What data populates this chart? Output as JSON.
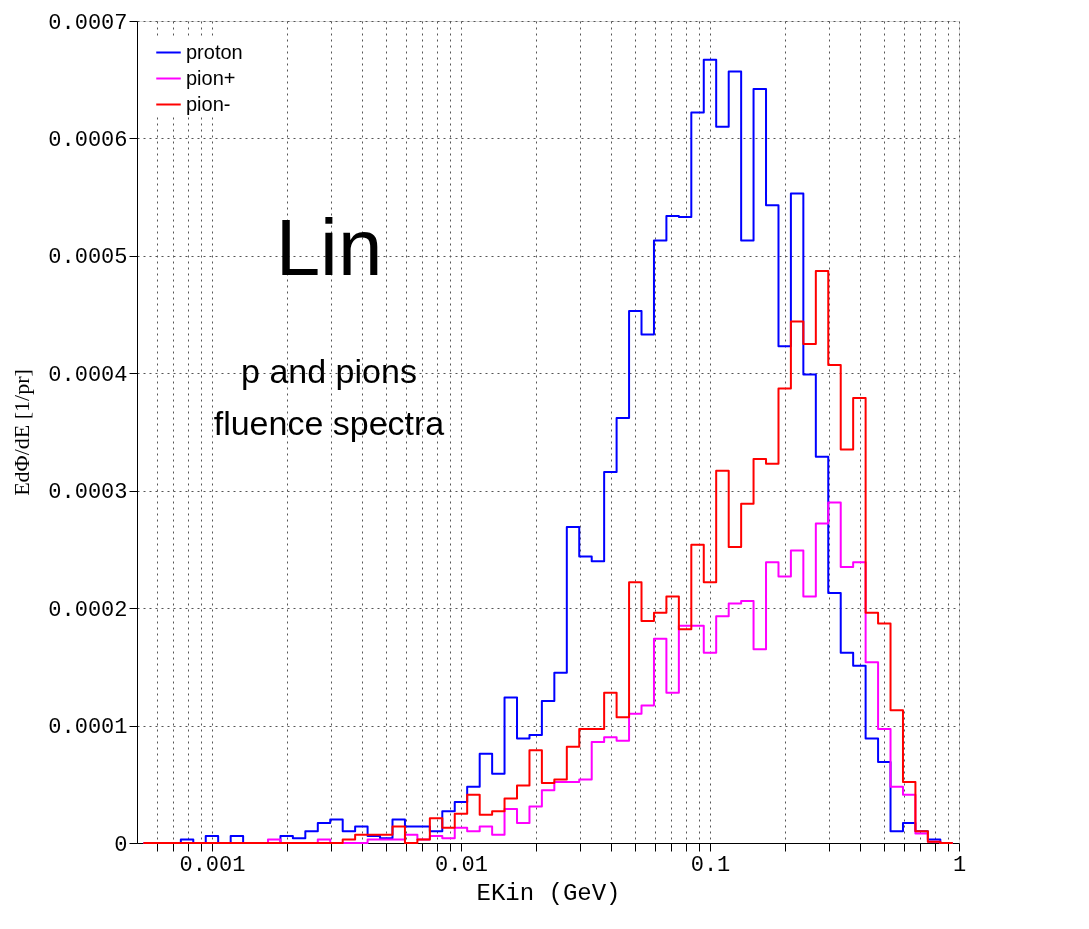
{
  "chart_data": {
    "type": "histogram",
    "xlabel": "EKin (GeV)",
    "ylabel": "EdΦ/dE [1/pr]",
    "annotations": [
      "Lin",
      "p and pions",
      "fluence spectra"
    ],
    "log": "x",
    "grid": true,
    "legend": "top left",
    "line_style": "solid",
    "xlim": [
      0.0005,
      1
    ],
    "ylim": [
      0,
      0.0007
    ],
    "xticks": [
      {
        "value": 0.0006,
        "label": null
      },
      {
        "value": 0.0007,
        "label": null
      },
      {
        "value": 0.0008,
        "label": null
      },
      {
        "value": 0.0009,
        "label": null
      },
      0.001,
      {
        "value": 0.002,
        "label": null
      },
      {
        "value": 0.003,
        "label": null
      },
      {
        "value": 0.004,
        "label": null
      },
      {
        "value": 0.005,
        "label": null
      },
      {
        "value": 0.006,
        "label": null
      },
      {
        "value": 0.007,
        "label": null
      },
      {
        "value": 0.008,
        "label": null
      },
      {
        "value": 0.009,
        "label": null
      },
      0.01,
      {
        "value": 0.02,
        "label": null
      },
      {
        "value": 0.03,
        "label": null
      },
      {
        "value": 0.04,
        "label": null
      },
      {
        "value": 0.05,
        "label": null
      },
      {
        "value": 0.06,
        "label": null
      },
      {
        "value": 0.07,
        "label": null
      },
      {
        "value": 0.08,
        "label": null
      },
      {
        "value": 0.09,
        "label": null
      },
      0.1,
      {
        "value": 0.2,
        "label": null
      },
      {
        "value": 0.3,
        "label": null
      },
      {
        "value": 0.4,
        "label": null
      },
      {
        "value": 0.5,
        "label": null
      },
      {
        "value": 0.6,
        "label": null
      },
      {
        "value": 0.7,
        "label": null
      },
      {
        "value": 0.8,
        "label": null
      },
      {
        "value": 0.9,
        "label": null
      },
      1
    ],
    "yticks": [
      0,
      0.0001,
      0.0002,
      0.0003,
      0.0004,
      0.0005,
      0.0006,
      0.0007
    ],
    "bins": [
      0.0005309,
      0.0005957,
      0.0006683,
      0.0007499,
      0.0008414,
      0.0009441,
      0.001059,
      0.001189,
      0.001334,
      0.001496,
      0.001679,
      0.001884,
      0.002113,
      0.002371,
      0.002661,
      0.002985,
      0.00335,
      0.003758,
      0.004217,
      0.004732,
      0.005309,
      0.005957,
      0.006683,
      0.007499,
      0.008414,
      0.009441,
      0.01059,
      0.01189,
      0.01334,
      0.01496,
      0.01679,
      0.01884,
      0.02113,
      0.02371,
      0.02661,
      0.02985,
      0.0335,
      0.03758,
      0.04217,
      0.04732,
      0.05309,
      0.05957,
      0.06683,
      0.07499,
      0.08414,
      0.09441,
      0.1059,
      0.1189,
      0.1334,
      0.1496,
      0.1679,
      0.1884,
      0.2113,
      0.2371,
      0.2661,
      0.2985,
      0.335,
      0.3758,
      0.4217,
      0.4732,
      0.5309,
      0.5957,
      0.6683,
      0.7499,
      0.8414,
      0.9441
    ],
    "series": [
      {
        "name": "proton",
        "color": "#0000ff",
        "values": [
          0,
          0,
          0,
          3e-06,
          0,
          6e-06,
          0,
          6e-06,
          0,
          0,
          0,
          6e-06,
          4e-06,
          1e-05,
          1.7e-05,
          2e-05,
          1e-05,
          1.4e-05,
          6e-06,
          4e-06,
          2e-05,
          1.4e-05,
          1.4e-05,
          1e-05,
          2.7e-05,
          3.5e-05,
          4.8e-05,
          7.6e-05,
          5.9e-05,
          0.000124,
          8.9e-05,
          9.2e-05,
          0.000121,
          0.000145,
          0.000269,
          0.000244,
          0.00024,
          0.000316,
          0.000362,
          0.000453,
          0.000433,
          0.000513,
          0.000534,
          0.000533,
          0.000622,
          0.000667,
          0.00061,
          0.000657,
          0.000513,
          0.000642,
          0.000543,
          0.000423,
          0.000553,
          0.000399,
          0.000329,
          0.000213,
          0.000162,
          0.000151,
          8.9e-05,
          6.9e-05,
          1e-05,
          1.7e-05,
          1e-05,
          3e-06,
          0
        ]
      },
      {
        "name": "pion+",
        "color": "#ff00ff",
        "values": [
          0,
          0,
          0,
          0,
          0,
          0,
          0,
          0,
          0,
          0,
          3e-06,
          0,
          0,
          0,
          3e-06,
          0,
          0,
          0,
          3e-06,
          3e-06,
          3e-06,
          7e-06,
          3e-06,
          6e-06,
          4e-06,
          1.3e-05,
          1e-05,
          1.4e-05,
          7e-06,
          2.9e-05,
          1.7e-05,
          3.1e-05,
          4.5e-05,
          5.2e-05,
          5.2e-05,
          5.4e-05,
          8.6e-05,
          9e-05,
          8.7e-05,
          0.00011,
          0.000117,
          0.000174,
          0.000128,
          0.000185,
          0.000185,
          0.000162,
          0.000193,
          0.000204,
          0.000206,
          0.000165,
          0.000239,
          0.000227,
          0.000249,
          0.00021,
          0.000272,
          0.00029,
          0.000235,
          0.000239,
          0.000154,
          9.7e-05,
          4.8e-05,
          4.1e-05,
          8e-06,
          1e-06,
          0
        ]
      },
      {
        "name": "pion-",
        "color": "#ff0000",
        "values": [
          0,
          0,
          0,
          0,
          0,
          0,
          0,
          0,
          0,
          0,
          0,
          0,
          0,
          0,
          0,
          0,
          3e-06,
          7e-06,
          7e-06,
          7e-06,
          1.4e-05,
          0,
          3e-06,
          2.1e-05,
          1.3e-05,
          2.5e-05,
          4.1e-05,
          2.4e-05,
          2.7e-05,
          3.8e-05,
          4.9e-05,
          7.9e-05,
          5.1e-05,
          5.4e-05,
          8.2e-05,
          9.7e-05,
          9.7e-05,
          0.000128,
          0.000107,
          0.000222,
          0.000189,
          0.000196,
          0.00021,
          0.000182,
          0.000254,
          0.000222,
          0.000317,
          0.000252,
          0.000289,
          0.000327,
          0.000323,
          0.000387,
          0.000444,
          0.000425,
          0.000487,
          0.000407,
          0.000335,
          0.000379,
          0.000196,
          0.000187,
          0.000113,
          5.2e-05,
          1e-05,
          1e-06,
          0
        ]
      }
    ]
  }
}
